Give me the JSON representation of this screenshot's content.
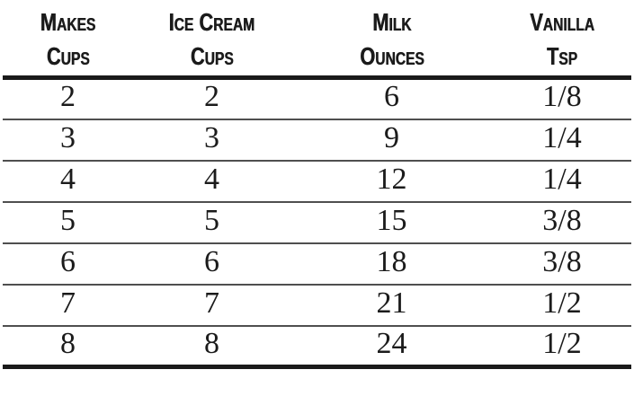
{
  "colors": {
    "background": "#ffffff",
    "text": "#1b1b1b",
    "thick_rule": "#1a1a1a",
    "thin_rule": "#4f4f4f"
  },
  "chart_data": {
    "type": "table",
    "columns": [
      {
        "label": "Makes Cups",
        "line1": "Makes",
        "line2": "Cups"
      },
      {
        "label": "Ice Cream Cups",
        "line1": "Ice Cream",
        "line2": "Cups"
      },
      {
        "label": "Milk Ounces",
        "line1": "Milk",
        "line2": "Ounces"
      },
      {
        "label": "Vanilla Tsp",
        "line1": "Vanilla",
        "line2": "Tsp"
      }
    ],
    "rows": [
      [
        "2",
        "2",
        "6",
        "1/8"
      ],
      [
        "3",
        "3",
        "9",
        "1/4"
      ],
      [
        "4",
        "4",
        "12",
        "1/4"
      ],
      [
        "5",
        "5",
        "15",
        "3/8"
      ],
      [
        "6",
        "6",
        "18",
        "3/8"
      ],
      [
        "7",
        "7",
        "21",
        "1/2"
      ],
      [
        "8",
        "8",
        "24",
        "1/2"
      ]
    ],
    "layout": {
      "grid": "horizontal-rules-only",
      "header_rule": "thick",
      "bottom_rule": "thick",
      "row_rules": "thin"
    }
  }
}
